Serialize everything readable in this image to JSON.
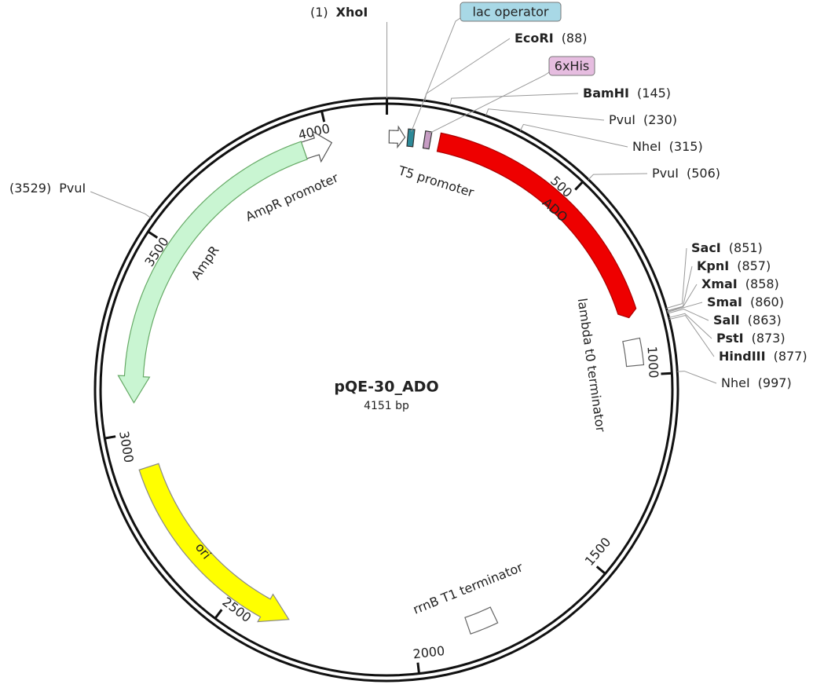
{
  "title": "pQE-30_ADO",
  "length": "4151 bp",
  "ticks": [
    "4000",
    "500",
    "1000",
    "1500",
    "2000",
    "2500",
    "3000",
    "3500"
  ],
  "features": [
    {
      "label": "T5 promoter"
    },
    {
      "label": "AmpR promoter"
    },
    {
      "label": "AmpR"
    },
    {
      "label": "ADO"
    },
    {
      "label": "lambda t0 terminator"
    },
    {
      "label": "ori"
    },
    {
      "label": "rrnB T1 terminator"
    }
  ],
  "tags": [
    "lac operator",
    "6xHis"
  ],
  "sites": [
    {
      "name": "XhoI",
      "position": "(1)",
      "bold": true
    },
    {
      "name": "EcoRI",
      "position": "(88)",
      "bold": true
    },
    {
      "name": "BamHI",
      "position": "(145)",
      "bold": true
    },
    {
      "name": "PvuI",
      "position": "(230)",
      "bold": false
    },
    {
      "name": "NheI",
      "position": "(315)",
      "bold": false
    },
    {
      "name": "PvuI",
      "position": "(506)",
      "bold": false
    },
    {
      "name": "SacI",
      "position": "(851)",
      "bold": true
    },
    {
      "name": "KpnI",
      "position": "(857)",
      "bold": true
    },
    {
      "name": "XmaI",
      "position": "(858)",
      "bold": true
    },
    {
      "name": "SmaI",
      "position": "(860)",
      "bold": true
    },
    {
      "name": "SalI",
      "position": "(863)",
      "bold": true
    },
    {
      "name": "PstI",
      "position": "(873)",
      "bold": true
    },
    {
      "name": "HindIII",
      "position": "(877)",
      "bold": true
    },
    {
      "name": "NheI",
      "position": "(997)",
      "bold": false
    },
    {
      "name": "PvuI",
      "position": "(3529)",
      "bold": false
    }
  ]
}
